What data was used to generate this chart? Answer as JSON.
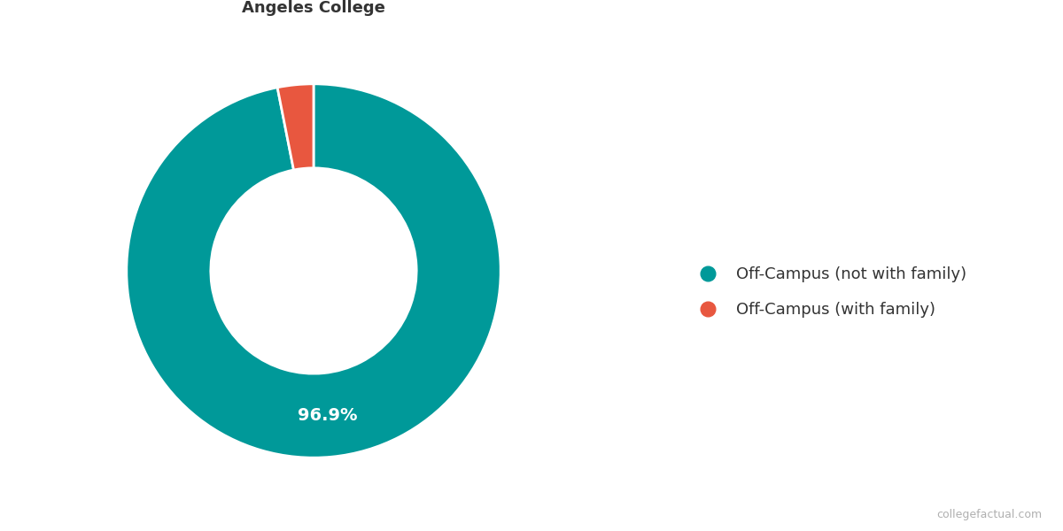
{
  "labels": [
    "Off-Campus (not with family)",
    "Off-Campus (with family)"
  ],
  "values": [
    96.9,
    3.1
  ],
  "colors": [
    "#009999",
    "#e8573f"
  ],
  "wedge_label": "96.9%",
  "wedge_label_color": "white",
  "wedge_label_fontsize": 14,
  "title_fontsize": 13,
  "legend_fontsize": 13,
  "background_color": "#ffffff",
  "watermark": "collegefactual.com",
  "donut_width": 0.45,
  "startangle": 90,
  "counterclock": false
}
